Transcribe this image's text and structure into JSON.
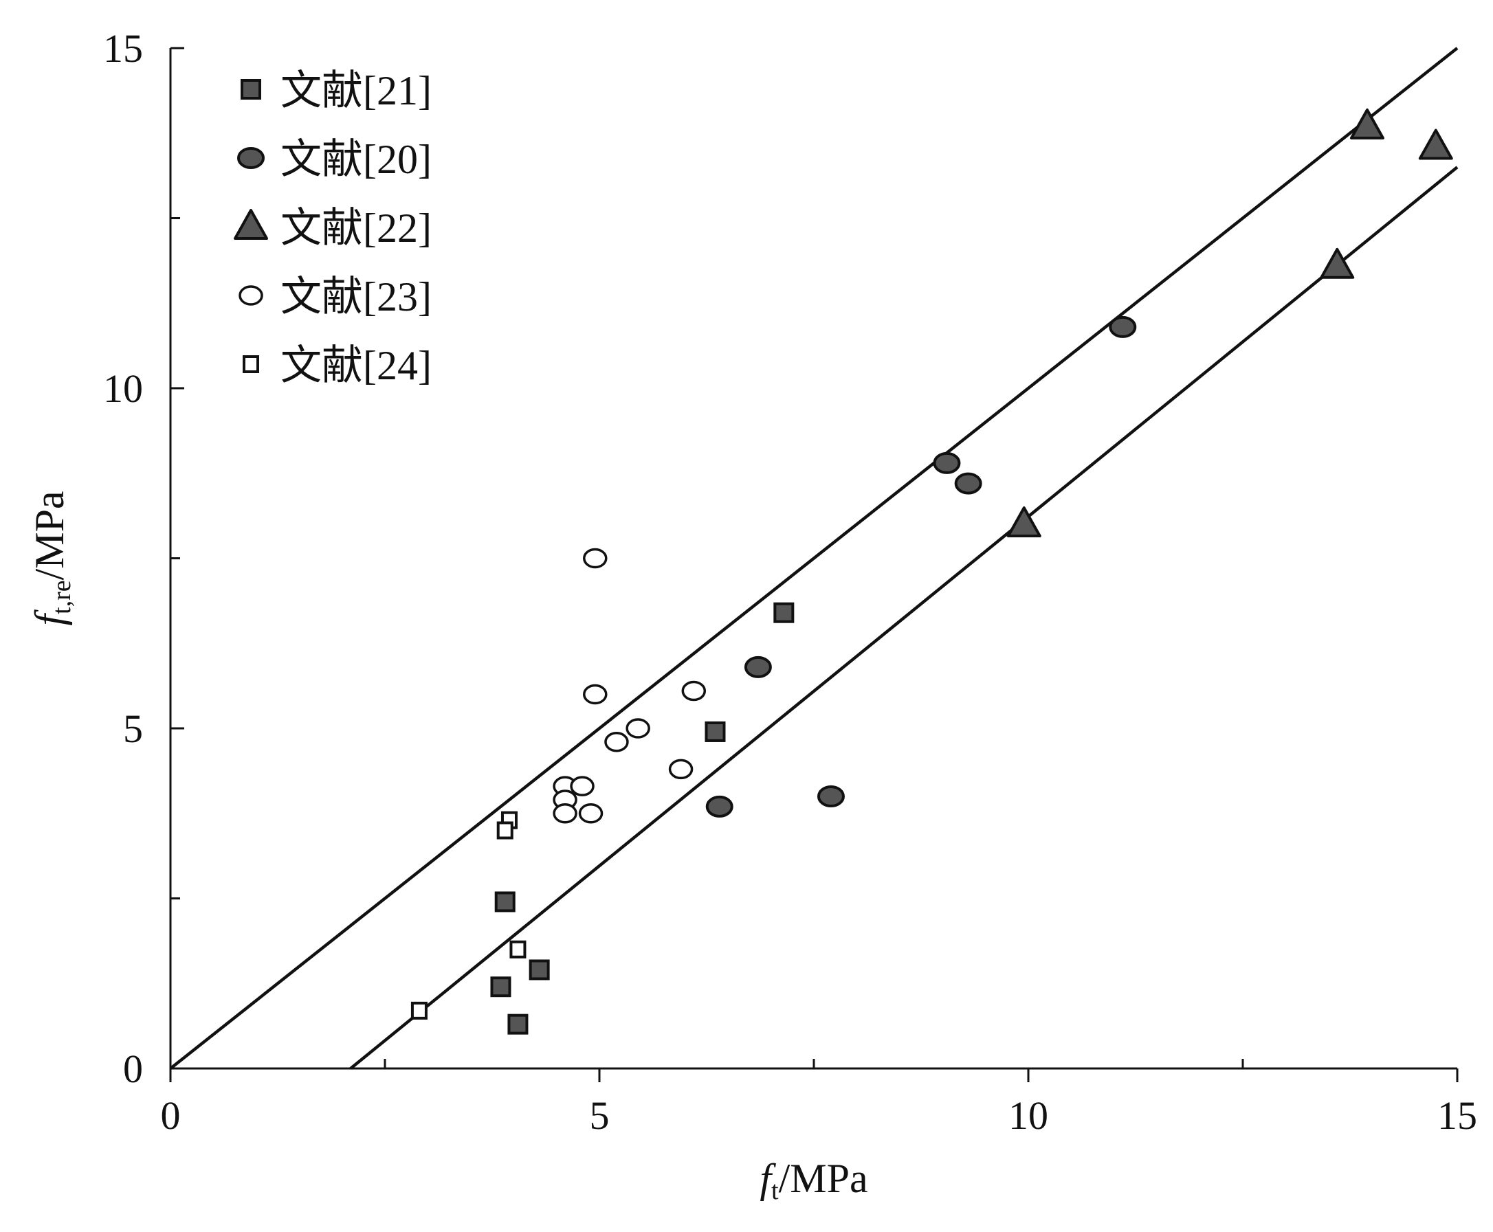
{
  "chart_data": {
    "type": "scatter",
    "xlabel": {
      "f": "f",
      "sub": "t",
      "unit": "/MPa"
    },
    "ylabel": {
      "f": "f",
      "sub": "t,re",
      "unit": "/MPa"
    },
    "xlim": [
      0,
      15
    ],
    "ylim": [
      0,
      15
    ],
    "x_ticks": [
      "0",
      "5",
      "10",
      "15"
    ],
    "y_ticks": [
      "0",
      "5",
      "10",
      "15"
    ],
    "x_minor_ticks": [
      2.5,
      7.5,
      12.5
    ],
    "y_minor_ticks": [
      2.5,
      7.5,
      12.5
    ],
    "grid": false,
    "legend_position": "top-left",
    "series": [
      {
        "name": "文献[21]",
        "marker": "square-filled",
        "points": [
          [
            7.15,
            6.7
          ],
          [
            6.35,
            4.95
          ],
          [
            3.9,
            2.45
          ],
          [
            3.85,
            1.2
          ],
          [
            4.3,
            1.45
          ],
          [
            4.05,
            0.65
          ]
        ]
      },
      {
        "name": "文献[20]",
        "marker": "circle-filled",
        "points": [
          [
            9.05,
            8.9
          ],
          [
            9.3,
            8.6
          ],
          [
            11.1,
            10.9
          ],
          [
            6.85,
            5.9
          ],
          [
            6.4,
            3.85
          ],
          [
            7.7,
            4.0
          ]
        ]
      },
      {
        "name": "文献[22]",
        "marker": "triangle-filled",
        "points": [
          [
            9.95,
            8.0
          ],
          [
            13.6,
            11.8
          ],
          [
            13.95,
            13.85
          ],
          [
            14.75,
            13.55
          ]
        ]
      },
      {
        "name": "文献[23]",
        "marker": "circle-open",
        "points": [
          [
            4.95,
            7.5
          ],
          [
            4.95,
            5.5
          ],
          [
            6.1,
            5.55
          ],
          [
            5.45,
            5.0
          ],
          [
            5.2,
            4.8
          ],
          [
            5.95,
            4.4
          ],
          [
            4.6,
            4.15
          ],
          [
            4.8,
            4.15
          ],
          [
            4.6,
            3.95
          ],
          [
            4.6,
            3.75
          ],
          [
            4.9,
            3.75
          ]
        ]
      },
      {
        "name": "文献[24]",
        "marker": "square-open",
        "points": [
          [
            3.95,
            3.65
          ],
          [
            3.9,
            3.5
          ],
          [
            4.05,
            1.75
          ],
          [
            2.9,
            0.85
          ]
        ]
      }
    ],
    "lines": [
      {
        "points": [
          [
            0,
            0
          ],
          [
            15,
            15.0
          ]
        ]
      },
      {
        "points": [
          [
            2.1,
            0
          ],
          [
            15,
            13.25
          ]
        ]
      }
    ],
    "colors": {
      "filled": "#555555",
      "stroke": "#111111",
      "open": "#ffffff"
    }
  }
}
